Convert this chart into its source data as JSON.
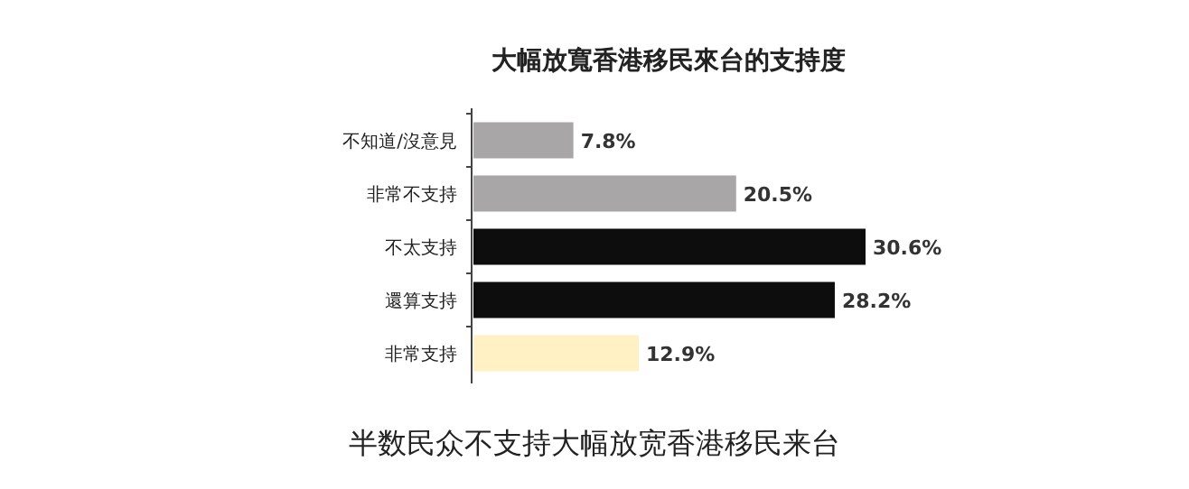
{
  "chart_data": {
    "type": "bar",
    "orientation": "horizontal",
    "title": "大幅放寬香港移民來台的支持度",
    "categories": [
      "不知道/沒意見",
      "非常不支持",
      "不太支持",
      "還算支持",
      "非常支持"
    ],
    "values": [
      7.8,
      20.5,
      30.6,
      28.2,
      12.9
    ],
    "colors": [
      "#a8a6a6",
      "#a8a6a6",
      "#0d0d0d",
      "#0d0d0d",
      "#fff1c4"
    ],
    "value_labels": [
      "7.8%",
      "20.5%",
      "30.6%",
      "28.2%",
      "12.9%"
    ],
    "annotations": [
      "半数民众不支持大幅放宽香港移民来台"
    ]
  }
}
